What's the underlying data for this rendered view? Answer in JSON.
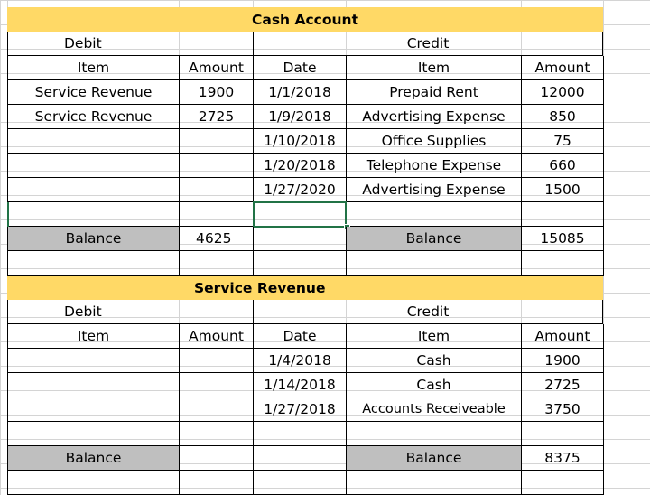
{
  "cash_account": {
    "title": "Cash Account",
    "debit_label": "Debit",
    "credit_label": "Credit",
    "headers": {
      "item": "Item",
      "amount": "Amount",
      "date": "Date",
      "credit_item": "Item",
      "credit_amount": "Amount"
    },
    "rows": [
      {
        "debit_item": "Service Revenue",
        "debit_amount": "1900",
        "date": "1/1/2018",
        "credit_item": "Prepaid Rent",
        "credit_amount": "12000"
      },
      {
        "debit_item": "Service Revenue",
        "debit_amount": "2725",
        "date": "1/9/2018",
        "credit_item": "Advertising Expense",
        "credit_amount": "850"
      },
      {
        "debit_item": "",
        "debit_amount": "",
        "date": "1/10/2018",
        "credit_item": "Office Supplies",
        "credit_amount": "75"
      },
      {
        "debit_item": "",
        "debit_amount": "",
        "date": "1/20/2018",
        "credit_item": "Telephone Expense",
        "credit_amount": "660"
      },
      {
        "debit_item": "",
        "debit_amount": "",
        "date": "1/27/2020",
        "credit_item": "Advertising Expense",
        "credit_amount": "1500"
      }
    ],
    "balance": {
      "debit_label": "Balance",
      "debit_value": "4625",
      "credit_label": "Balance",
      "credit_value": "15085"
    }
  },
  "service_revenue": {
    "title": "Service Revenue",
    "debit_label": "Debit",
    "credit_label": "Credit",
    "headers": {
      "item": "Item",
      "amount": "Amount",
      "date": "Date",
      "credit_item": "Item",
      "credit_amount": "Amount"
    },
    "rows": [
      {
        "date": "1/4/2018",
        "credit_item": "Cash",
        "credit_amount": "1900"
      },
      {
        "date": "1/14/2018",
        "credit_item": "Cash",
        "credit_amount": "2725"
      },
      {
        "date": "1/27/2018",
        "credit_item": "Accounts Receiveable",
        "credit_amount": "3750"
      }
    ],
    "balance": {
      "debit_label": "Balance",
      "debit_value": "",
      "credit_label": "Balance",
      "credit_value": "8375"
    }
  },
  "colors": {
    "header_fill": "#ffd966",
    "balance_fill": "#bfbfbf",
    "selection": "#217346"
  }
}
